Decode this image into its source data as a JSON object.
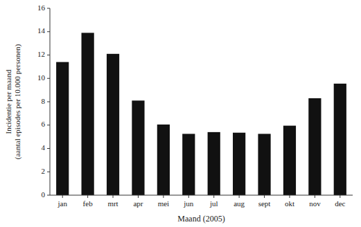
{
  "chart_data": {
    "type": "bar",
    "categories": [
      "jan",
      "feb",
      "mrt",
      "apr",
      "mei",
      "jun",
      "jul",
      "aug",
      "sept",
      "okt",
      "nov",
      "dec"
    ],
    "values": [
      11.4,
      13.9,
      12.1,
      8.1,
      6.05,
      5.25,
      5.4,
      5.35,
      5.25,
      5.95,
      8.3,
      9.55
    ],
    "color": "#111111",
    "x_label": "Maand (2005)",
    "y_label": "Incidentie per maand\n(aantal episodes per 10.000 personen)",
    "ylim": [
      0,
      16
    ],
    "yticks": [
      0,
      2,
      4,
      6,
      8,
      10,
      12,
      14,
      16
    ],
    "grid": false
  }
}
